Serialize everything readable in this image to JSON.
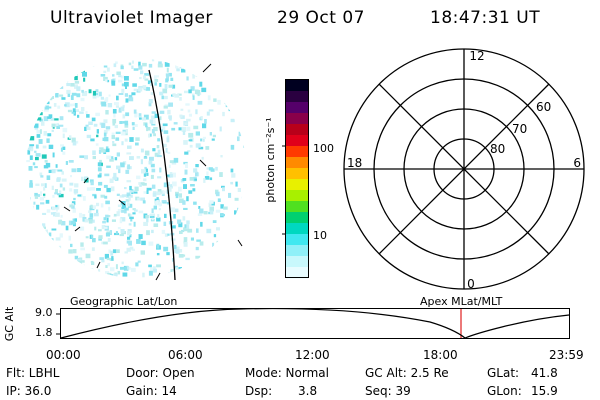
{
  "header": {
    "instrument": "Ultraviolet Imager",
    "date": "29 Oct 07",
    "time": "18:47:31 UT"
  },
  "colorbar": {
    "unit_label": "photon cm⁻²s⁻¹",
    "ticks": [
      "100",
      "10"
    ],
    "colors": [
      "#000020",
      "#2a0040",
      "#55006a",
      "#8a004a",
      "#b8001a",
      "#e0001a",
      "#ff3a00",
      "#ff8a00",
      "#ffc000",
      "#e8f000",
      "#a8f000",
      "#50e020",
      "#00d070",
      "#00d8c0",
      "#40e8f0",
      "#90f0f8",
      "#c8f8fc",
      "#e8fcff"
    ]
  },
  "polar": {
    "mlt_labels": {
      "top": "12",
      "left": "18",
      "right": "6",
      "bottom": "0"
    },
    "lat_labels": [
      "60",
      "70",
      "80"
    ]
  },
  "timeline": {
    "left_title": "Geographic Lat/Lon",
    "right_title": "Apex MLat/MLT",
    "y_label": "GC Alt",
    "y_ticks": [
      "9.0",
      "1.8"
    ],
    "x_ticks": [
      "00:00",
      "06:00",
      "12:00",
      "18:00",
      "23:59"
    ]
  },
  "info": {
    "flt": "Flt: LBHL",
    "ip": "IP: 36.0",
    "door": "Door: Open",
    "gain": "Gain: 14",
    "mode": "Mode: Normal",
    "dsp_label": "Dsp:",
    "dsp_value": "3.8",
    "gcalt": "GC Alt: 2.5 Re",
    "seq": "Seq: 39",
    "glat_label": "GLat:",
    "glat_value": "41.8",
    "glon_label": "GLon:",
    "glon_value": "15.9"
  }
}
